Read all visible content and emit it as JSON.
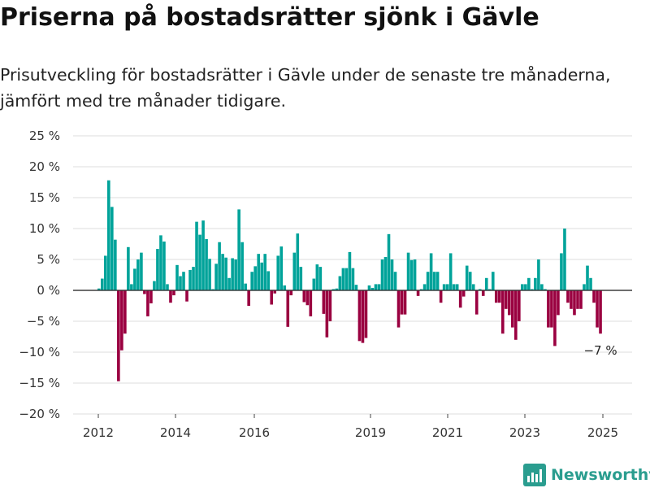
{
  "title": "Priserna på bostadsrätter sjönk i Gävle",
  "subtitle": "Prisutveckling för bostadsrätter i Gävle under de senaste tre månaderna, jämfört med tre månader tidigare.",
  "brand": "Newsworthy",
  "chart_data": {
    "type": "bar",
    "ylim": [
      -20,
      25
    ],
    "y_ticks": [
      25,
      20,
      15,
      10,
      5,
      0,
      -5,
      -10,
      -15,
      -20
    ],
    "y_tick_format": "{v} %",
    "x_ticks": [
      "2012",
      "2014",
      "2016",
      "2019",
      "2021",
      "2023",
      "2025"
    ],
    "grid": true,
    "colors": {
      "positive": "#00a39a",
      "negative": "#9a0040"
    },
    "annotation": {
      "text": "−7 %"
    },
    "values": [
      0.3,
      1.9,
      5.6,
      17.8,
      13.5,
      8.2,
      -14.7,
      -9.7,
      -7.0,
      7.0,
      1.0,
      3.5,
      5.0,
      6.1,
      -0.6,
      -4.2,
      -2.1,
      1.5,
      6.7,
      8.9,
      7.9,
      1.0,
      -2.0,
      -0.8,
      4.1,
      2.3,
      3.0,
      -1.8,
      3.3,
      3.8,
      11.1,
      9.0,
      11.3,
      8.3,
      5.1,
      0.2,
      4.3,
      7.8,
      5.9,
      5.3,
      2.0,
      5.2,
      5.0,
      13.1,
      7.8,
      1.1,
      -2.5,
      3.0,
      3.9,
      5.9,
      4.5,
      5.9,
      3.1,
      -2.3,
      -0.5,
      5.6,
      7.1,
      0.8,
      -5.9,
      -0.8,
      6.1,
      9.2,
      3.8,
      -1.9,
      -2.4,
      -4.2,
      1.9,
      4.2,
      3.8,
      -3.8,
      -7.6,
      -5.0,
      0.2,
      0.3,
      2.3,
      3.6,
      3.6,
      6.2,
      3.6,
      0.9,
      -8.2,
      -8.5,
      -7.7,
      0.8,
      0.4,
      1.0,
      1.0,
      5.0,
      5.4,
      9.1,
      5.0,
      3.0,
      -6.0,
      -3.9,
      -3.9,
      6.1,
      4.9,
      5.0,
      -0.9,
      0.2,
      1.0,
      3.0,
      6.0,
      3.0,
      3.0,
      -2.0,
      1.0,
      1.0,
      6.0,
      1.0,
      1.0,
      -2.8,
      -1.0,
      4.0,
      3.0,
      1.0,
      -3.9,
      0.2,
      -0.9,
      2.0,
      0.2,
      3.0,
      -2.0,
      -2.0,
      -7.0,
      -3.0,
      -4.0,
      -6.0,
      -8.0,
      -5.0,
      1.0,
      1.0,
      2.0,
      0.2,
      2.0,
      5.0,
      1.0,
      0.2,
      -6.0,
      -6.0,
      -9.0,
      -4.0,
      6.0,
      10.0,
      -2.0,
      -3.0,
      -4.0,
      -3.0,
      -3.0,
      1.0,
      4.0,
      2.0,
      -2.0,
      -6.0,
      -7.0
    ]
  }
}
